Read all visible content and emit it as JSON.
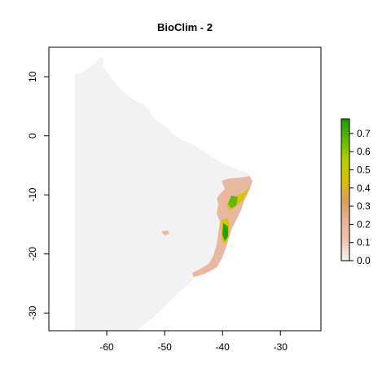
{
  "title": "BioClim -  2",
  "x_axis": {
    "ticks": [
      -60,
      -50,
      -40,
      -30
    ],
    "range": [
      -70,
      -23
    ]
  },
  "y_axis": {
    "ticks": [
      -30,
      -20,
      -10,
      0,
      10
    ],
    "range": [
      -33,
      15
    ]
  },
  "legend": {
    "ticks": [
      "0.0",
      "0.1",
      "0.2",
      "0.3",
      "0.4",
      "0.5",
      "0.6",
      "0.7"
    ],
    "range": [
      0,
      0.78
    ],
    "gradient_colors": [
      "#f2f2f2",
      "#eac5b0",
      "#e8b393",
      "#dca05c",
      "#d6c200",
      "#b4d000",
      "#61b800",
      "#1f9a00"
    ]
  },
  "colors": {
    "landmass": "#f2f2f2",
    "low_suitability": "#e8b8a0",
    "mid_suitability": "#d8c400",
    "high_suitability": "#2a9d00"
  }
}
